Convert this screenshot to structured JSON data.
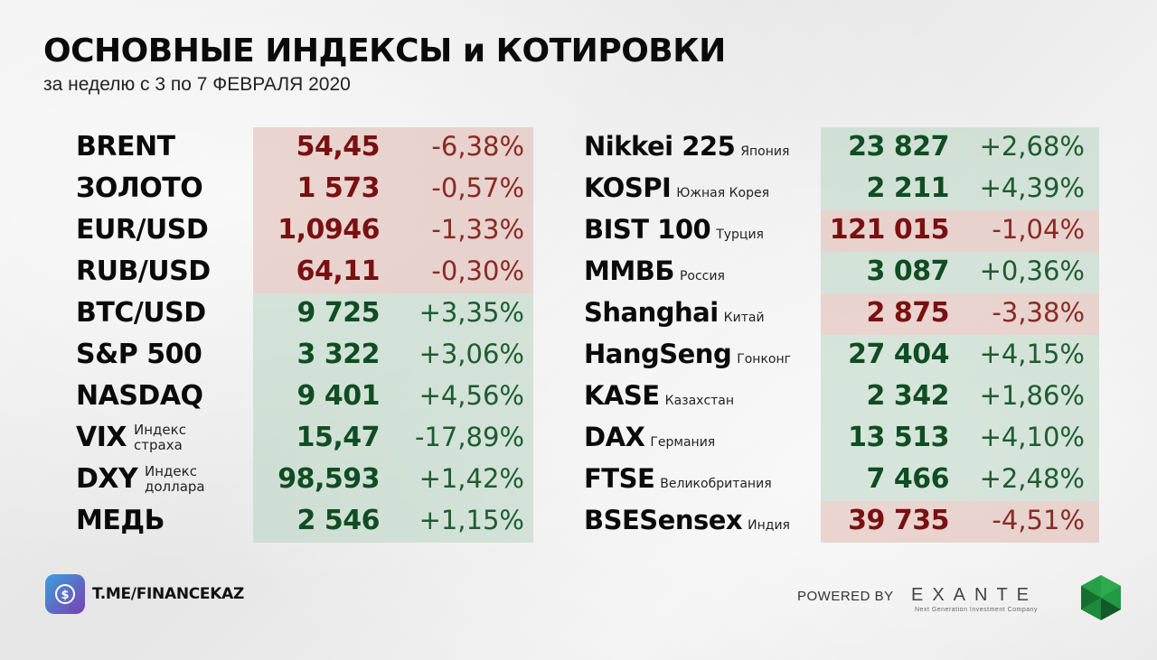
{
  "header": {
    "title": "ОСНОВНЫЕ ИНДЕКСЫ и КОТИРОВКИ",
    "subtitle": "за неделю с 3 по 7 ФЕВРАЛЯ 2020"
  },
  "colors": {
    "negative": "#7a1010",
    "positive": "#0f4d22",
    "negative_bg": "#dbaaa2",
    "positive_bg": "#accfb7"
  },
  "left_table": [
    {
      "name": "BRENT",
      "value": "54,45",
      "change": "-6,38%",
      "trend": "negative"
    },
    {
      "name": "ЗОЛОТО",
      "value": "1 573",
      "change": "-0,57%",
      "trend": "negative"
    },
    {
      "name": "EUR/USD",
      "value": "1,0946",
      "change": "-1,33%",
      "trend": "negative"
    },
    {
      "name": "RUB/USD",
      "value": "64,11",
      "change": "-0,30%",
      "trend": "negative"
    },
    {
      "name": "BTC/USD",
      "value": "9 725",
      "change": "+3,35%",
      "trend": "positive"
    },
    {
      "name": "S&P 500",
      "value": "3 322",
      "change": "+3,06%",
      "trend": "positive"
    },
    {
      "name": "NASDAQ",
      "value": "9 401",
      "change": "+4,56%",
      "trend": "positive"
    },
    {
      "name": "VIX",
      "note1": "Индекс",
      "note2": "страха",
      "value": "15,47",
      "change": "-17,89%",
      "trend": "positive"
    },
    {
      "name": "DXY",
      "note1": "Индекс",
      "note2": "доллара",
      "value": "98,593",
      "change": "+1,42%",
      "trend": "positive"
    },
    {
      "name": "МЕДЬ",
      "value": "2 546",
      "change": "+1,15%",
      "trend": "positive"
    }
  ],
  "right_table": [
    {
      "name": "Nikkei 225",
      "country": "Япония",
      "value": "23 827",
      "change": "+2,68%",
      "trend": "positive"
    },
    {
      "name": "KOSPI",
      "country": "Южная Корея",
      "value": "2 211",
      "change": "+4,39%",
      "trend": "positive"
    },
    {
      "name": "BIST 100",
      "country": "Турция",
      "value": "121 015",
      "change": "-1,04%",
      "trend": "negative"
    },
    {
      "name": "ММВБ",
      "country": "Россия",
      "value": "3 087",
      "change": "+0,36%",
      "trend": "positive"
    },
    {
      "name": "Shanghai",
      "country": "Китай",
      "value": "2 875",
      "change": "-3,38%",
      "trend": "negative"
    },
    {
      "name": "HangSeng",
      "country": "Гонконг",
      "value": "27 404",
      "change": "+4,15%",
      "trend": "positive"
    },
    {
      "name": "KASE",
      "country": "Казахстан",
      "value": "2 342",
      "change": "+1,86%",
      "trend": "positive"
    },
    {
      "name": "DAX",
      "country": "Германия",
      "value": "13 513",
      "change": "+4,10%",
      "trend": "positive"
    },
    {
      "name": "FTSE",
      "country": "Великобритания",
      "value": "7 466",
      "change": "+2,48%",
      "trend": "positive"
    },
    {
      "name": "BSESensex",
      "country": "Индия",
      "value": "39 735",
      "change": "-4,51%",
      "trend": "negative"
    }
  ],
  "footer": {
    "channel": "T.ME/FINANCEKAZ",
    "powered_by": "POWERED BY",
    "brand": "EXANTE",
    "tagline": "Next Generation Investment Company"
  }
}
